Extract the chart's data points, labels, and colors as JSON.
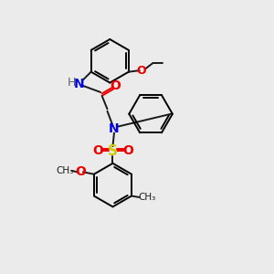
{
  "bg_color": "#ebebeb",
  "bond_color": "#1a1a1a",
  "N_color": "#0000ee",
  "O_color": "#ee0000",
  "S_color": "#cccc00",
  "H_color": "#606060",
  "lw": 1.4,
  "figsize": [
    3.0,
    3.0
  ],
  "dpi": 100,
  "xlim": [
    0,
    10
  ],
  "ylim": [
    0,
    10
  ]
}
